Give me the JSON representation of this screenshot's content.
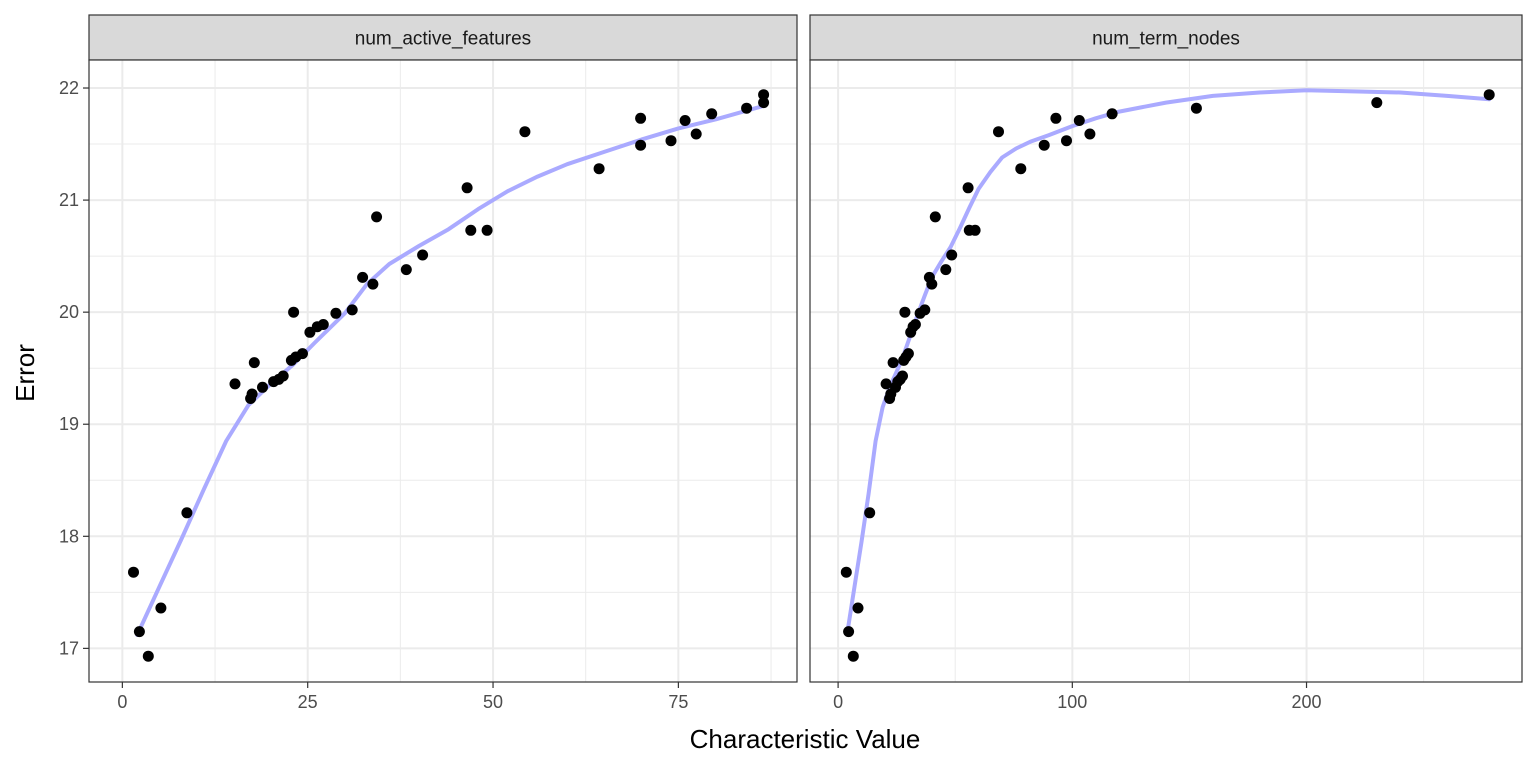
{
  "chart_data": {
    "type": "scatter",
    "ylabel": "Error",
    "xlabel": "Characteristic Value",
    "ylim": [
      16.7,
      22.25
    ],
    "yticks": [
      17,
      18,
      19,
      20,
      21,
      22
    ],
    "colors": {
      "points": "#000000",
      "smooth": "#aaaaff",
      "strip_bg": "#d9d9d9",
      "grid": "#ebebeb"
    },
    "grid": true,
    "panels": [
      {
        "strip": "num_active_features",
        "xlim": [
          -4.5,
          91
        ],
        "xticks": [
          0,
          25,
          50,
          75
        ],
        "points": [
          [
            1.5,
            17.68
          ],
          [
            2.3,
            17.15
          ],
          [
            3.5,
            16.93
          ],
          [
            5.2,
            17.36
          ],
          [
            8.7,
            18.21
          ],
          [
            15.2,
            19.36
          ],
          [
            17.3,
            19.23
          ],
          [
            17.5,
            19.27
          ],
          [
            17.8,
            19.55
          ],
          [
            18.9,
            19.33
          ],
          [
            20.4,
            19.38
          ],
          [
            21.1,
            19.4
          ],
          [
            21.7,
            19.43
          ],
          [
            22.8,
            19.57
          ],
          [
            23.1,
            20.0
          ],
          [
            23.4,
            19.6
          ],
          [
            24.3,
            19.63
          ],
          [
            25.3,
            19.82
          ],
          [
            26.3,
            19.87
          ],
          [
            27.1,
            19.89
          ],
          [
            28.8,
            19.99
          ],
          [
            31.0,
            20.02
          ],
          [
            32.4,
            20.31
          ],
          [
            33.8,
            20.25
          ],
          [
            34.3,
            20.85
          ],
          [
            38.3,
            20.38
          ],
          [
            40.5,
            20.51
          ],
          [
            46.5,
            21.11
          ],
          [
            47.0,
            20.73
          ],
          [
            49.2,
            20.73
          ],
          [
            54.3,
            21.61
          ],
          [
            64.3,
            21.28
          ],
          [
            69.9,
            21.73
          ],
          [
            69.9,
            21.49
          ],
          [
            74.0,
            21.53
          ],
          [
            75.9,
            21.71
          ],
          [
            77.4,
            21.59
          ],
          [
            79.5,
            21.77
          ],
          [
            84.2,
            21.82
          ],
          [
            86.5,
            21.94
          ],
          [
            86.5,
            21.87
          ]
        ],
        "smooth": [
          [
            2,
            17.12
          ],
          [
            5,
            17.55
          ],
          [
            8,
            17.98
          ],
          [
            11,
            18.42
          ],
          [
            14,
            18.85
          ],
          [
            17,
            19.17
          ],
          [
            20,
            19.36
          ],
          [
            23,
            19.53
          ],
          [
            26,
            19.73
          ],
          [
            30,
            19.99
          ],
          [
            33,
            20.25
          ],
          [
            36,
            20.43
          ],
          [
            40,
            20.59
          ],
          [
            44,
            20.74
          ],
          [
            48,
            20.92
          ],
          [
            52,
            21.08
          ],
          [
            56,
            21.21
          ],
          [
            60,
            21.32
          ],
          [
            65,
            21.43
          ],
          [
            70,
            21.54
          ],
          [
            75,
            21.64
          ],
          [
            80,
            21.72
          ],
          [
            86.5,
            21.84
          ]
        ]
      },
      {
        "strip": "num_term_nodes",
        "xlim": [
          -12,
          292
        ],
        "xticks": [
          0,
          100,
          200
        ],
        "points": [
          [
            3.5,
            17.68
          ],
          [
            4.5,
            17.15
          ],
          [
            6.5,
            16.93
          ],
          [
            8.5,
            17.36
          ],
          [
            13.5,
            18.21
          ],
          [
            20.5,
            19.36
          ],
          [
            22.0,
            19.23
          ],
          [
            22.5,
            19.27
          ],
          [
            23.5,
            19.55
          ],
          [
            24.5,
            19.33
          ],
          [
            25.5,
            19.38
          ],
          [
            26.5,
            19.4
          ],
          [
            27.5,
            19.43
          ],
          [
            28.0,
            19.57
          ],
          [
            28.5,
            20.0
          ],
          [
            29.0,
            19.6
          ],
          [
            30.0,
            19.63
          ],
          [
            31.0,
            19.82
          ],
          [
            32.0,
            19.87
          ],
          [
            33.0,
            19.89
          ],
          [
            35.0,
            19.99
          ],
          [
            37.0,
            20.02
          ],
          [
            39.0,
            20.31
          ],
          [
            40.0,
            20.25
          ],
          [
            41.5,
            20.85
          ],
          [
            46.0,
            20.38
          ],
          [
            48.5,
            20.51
          ],
          [
            55.5,
            21.11
          ],
          [
            56.0,
            20.73
          ],
          [
            58.5,
            20.73
          ],
          [
            68.5,
            21.61
          ],
          [
            78.0,
            21.28
          ],
          [
            88.0,
            21.49
          ],
          [
            93.0,
            21.73
          ],
          [
            97.5,
            21.53
          ],
          [
            103.0,
            21.71
          ],
          [
            107.5,
            21.59
          ],
          [
            117.0,
            21.77
          ],
          [
            153.0,
            21.82
          ],
          [
            230.0,
            21.87
          ],
          [
            278.0,
            21.94
          ]
        ],
        "smooth": [
          [
            4,
            17.15
          ],
          [
            7,
            17.55
          ],
          [
            10,
            17.95
          ],
          [
            13,
            18.38
          ],
          [
            16,
            18.85
          ],
          [
            19,
            19.15
          ],
          [
            22,
            19.33
          ],
          [
            25,
            19.47
          ],
          [
            28,
            19.62
          ],
          [
            31,
            19.8
          ],
          [
            34,
            19.98
          ],
          [
            37,
            20.15
          ],
          [
            40,
            20.31
          ],
          [
            44,
            20.45
          ],
          [
            48,
            20.58
          ],
          [
            52,
            20.75
          ],
          [
            56,
            20.93
          ],
          [
            60,
            21.1
          ],
          [
            65,
            21.25
          ],
          [
            70,
            21.38
          ],
          [
            76,
            21.46
          ],
          [
            82,
            21.52
          ],
          [
            90,
            21.58
          ],
          [
            100,
            21.66
          ],
          [
            110,
            21.73
          ],
          [
            120,
            21.79
          ],
          [
            140,
            21.87
          ],
          [
            160,
            21.93
          ],
          [
            180,
            21.96
          ],
          [
            200,
            21.98
          ],
          [
            220,
            21.97
          ],
          [
            240,
            21.96
          ],
          [
            260,
            21.93
          ],
          [
            278,
            21.9
          ]
        ]
      }
    ]
  }
}
